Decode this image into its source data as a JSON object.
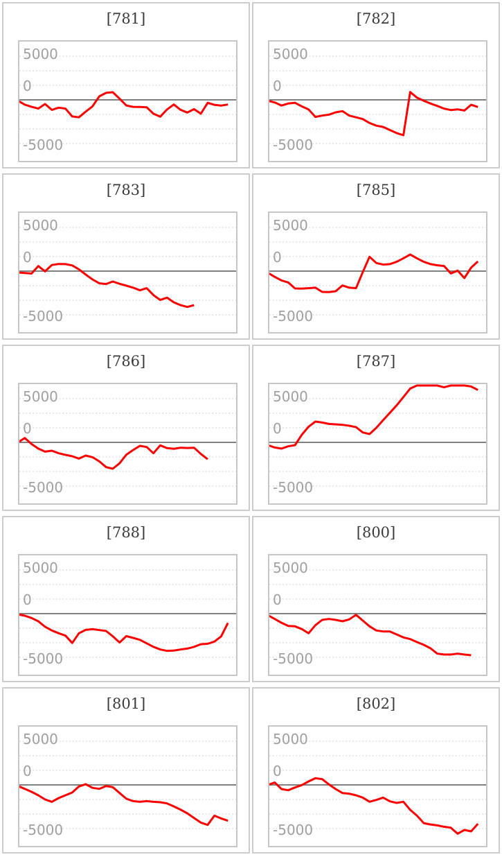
{
  "report": {
    "kind": "small-multiple line charts, 5 rows x 2 columns"
  },
  "axis": {
    "tick_labels": [
      "5000",
      "0",
      "-5000"
    ]
  },
  "chart_data": {
    "type": "line",
    "title": "",
    "xlabel": "",
    "ylabel": "",
    "ylim": [
      -6800,
      7100
    ],
    "y_ticks": [
      5000,
      0,
      -5000
    ],
    "gridline_values": [
      5000,
      3333,
      1667,
      0,
      -1667,
      -3333,
      -5000
    ],
    "grid": "dotted horizontal",
    "legend": "none",
    "line_color": "#ff0000",
    "zero_line_color": "#808080",
    "charts": [
      {
        "title": "[781]",
        "values": [
          -100,
          -550,
          -800,
          -1000,
          -480,
          -1150,
          -900,
          -1000,
          -1900,
          -2000,
          -1350,
          -750,
          400,
          800,
          875,
          135,
          -650,
          -800,
          -820,
          -850,
          -1590,
          -1930,
          -1100,
          -530,
          -1140,
          -1455,
          -1060,
          -1590,
          -340,
          -570,
          -660,
          -530
        ]
      },
      {
        "title": "[782]",
        "values": [
          -100,
          -300,
          -650,
          -420,
          -340,
          -750,
          -1100,
          -1950,
          -1800,
          -1700,
          -1430,
          -1290,
          -1800,
          -2000,
          -2200,
          -2650,
          -2950,
          -3100,
          -3450,
          -3800,
          -4050,
          900,
          250,
          -100,
          -420,
          -700,
          -1000,
          -1170,
          -1090,
          -1220,
          -560,
          -820
        ]
      },
      {
        "title": "[783]",
        "values": [
          -150,
          -220,
          -280,
          580,
          -30,
          700,
          820,
          800,
          650,
          200,
          -400,
          -950,
          -1400,
          -1480,
          -1190,
          -1450,
          -1670,
          -1900,
          -2200,
          -1950,
          -2750,
          -3300,
          -3040,
          -3570,
          -3900,
          -4100,
          -3900
        ]
      },
      {
        "title": "[785]",
        "values": [
          -200,
          -660,
          -1060,
          -1300,
          -1985,
          -2000,
          -1950,
          -1900,
          -2380,
          -2400,
          -2300,
          -1640,
          -1900,
          -1950,
          -130,
          1640,
          930,
          745,
          800,
          1060,
          1460,
          1900,
          1460,
          1060,
          800,
          670,
          585,
          -260,
          55,
          -790,
          400,
          1110
        ]
      },
      {
        "title": "[786]",
        "values": [
          0,
          500,
          -190,
          -715,
          -1060,
          -950,
          -1245,
          -1430,
          -1590,
          -1855,
          -1510,
          -1695,
          -2175,
          -2835,
          -3015,
          -2400,
          -1405,
          -875,
          -395,
          -530,
          -1245,
          -340,
          -660,
          -740,
          -610,
          -640,
          -610,
          -1325,
          -1930
        ]
      },
      {
        "title": "[787]",
        "values": [
          -320,
          -585,
          -715,
          -450,
          -320,
          875,
          1795,
          2380,
          2270,
          2110,
          2060,
          2010,
          1905,
          1745,
          1135,
          950,
          1665,
          2540,
          3385,
          4230,
          5185,
          6160,
          6690,
          6850,
          6800,
          6850,
          6300,
          6700,
          6850,
          6700,
          6400,
          6000
        ]
      },
      {
        "title": "[788]",
        "values": [
          -80,
          -240,
          -500,
          -875,
          -1500,
          -1930,
          -2250,
          -2515,
          -3360,
          -2250,
          -1855,
          -1775,
          -1880,
          -1985,
          -2595,
          -3310,
          -2570,
          -2780,
          -3000,
          -3400,
          -3800,
          -4100,
          -4260,
          -4230,
          -4100,
          -4000,
          -3800,
          -3500,
          -3450,
          -3200,
          -2600,
          -1060
        ]
      },
      {
        "title": "[800]",
        "values": [
          -185,
          -610,
          -1055,
          -1405,
          -1455,
          -1770,
          -2245,
          -1325,
          -715,
          -610,
          -715,
          -875,
          -660,
          -135,
          -795,
          -1455,
          -1930,
          -2040,
          -2040,
          -2380,
          -2725,
          -2915,
          -3255,
          -3575,
          -3970,
          -4580,
          -4685,
          -4685,
          -4580,
          -4685,
          -4765
        ]
      },
      {
        "title": "[801]",
        "values": [
          -130,
          -450,
          -795,
          -1190,
          -1665,
          -1935,
          -1510,
          -1190,
          -875,
          -185,
          80,
          -345,
          -450,
          -130,
          -265,
          -930,
          -1585,
          -1855,
          -1935,
          -1855,
          -1935,
          -1985,
          -2120,
          -2460,
          -2835,
          -3255,
          -3785,
          -4315,
          -4580,
          -3525,
          -3840,
          -4100
        ]
      },
      {
        "title": "[802]",
        "values": [
          0,
          270,
          -475,
          -610,
          -290,
          -25,
          395,
          765,
          660,
          55,
          -475,
          -925,
          -1005,
          -1190,
          -1455,
          -1930,
          -1720,
          -1455,
          -1880,
          -2065,
          -1930,
          -2855,
          -3520,
          -4370,
          -4530,
          -4635,
          -4790,
          -4900,
          -5585,
          -5160,
          -5320,
          -4450
        ]
      }
    ]
  }
}
